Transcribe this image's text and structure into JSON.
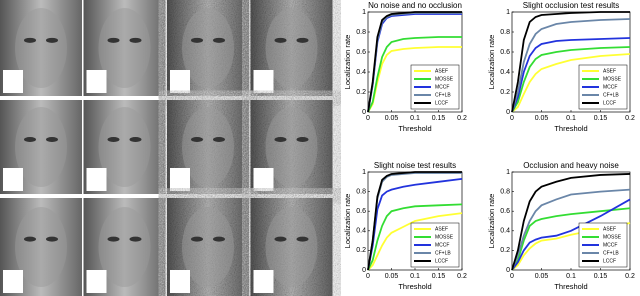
{
  "chart_data": [
    {
      "type": "line",
      "title": "No noise and no occlusion",
      "x_label": "Threshold",
      "y_label": "Localization rate",
      "x": [
        0,
        0.01,
        0.02,
        0.03,
        0.04,
        0.05,
        0.075,
        0.1,
        0.15,
        0.2
      ],
      "xlim": [
        0,
        0.2
      ],
      "xticks": [
        0,
        0.05,
        0.1,
        0.15,
        0.2
      ],
      "ylim": [
        0,
        1
      ],
      "yticks": [
        0,
        0.2,
        0.4,
        0.6,
        0.8,
        1
      ],
      "legend": "lower-right",
      "series": [
        {
          "name": "ASEF",
          "color": "#ffff33",
          "values": [
            0,
            0.08,
            0.3,
            0.48,
            0.57,
            0.61,
            0.63,
            0.64,
            0.65,
            0.65
          ]
        },
        {
          "name": "MOSSE",
          "color": "#33dd33",
          "values": [
            0,
            0.1,
            0.35,
            0.55,
            0.65,
            0.7,
            0.73,
            0.74,
            0.75,
            0.75
          ]
        },
        {
          "name": "MCCF",
          "color": "#2233dd",
          "values": [
            0,
            0.27,
            0.7,
            0.88,
            0.94,
            0.96,
            0.97,
            0.98,
            0.98,
            0.98
          ]
        },
        {
          "name": "CF+LB",
          "color": "#6a86a8",
          "values": [
            0,
            0.28,
            0.72,
            0.9,
            0.95,
            0.97,
            0.98,
            0.99,
            0.99,
            0.99
          ]
        },
        {
          "name": "LCCF",
          "color": "#000000",
          "values": [
            0,
            0.3,
            0.75,
            0.92,
            0.96,
            0.98,
            0.99,
            1,
            1,
            1
          ]
        }
      ]
    },
    {
      "type": "line",
      "title": "Slight occlusion test results",
      "x_label": "Threshold",
      "y_label": "Localization rate",
      "x": [
        0,
        0.01,
        0.02,
        0.03,
        0.04,
        0.05,
        0.075,
        0.1,
        0.15,
        0.2
      ],
      "xlim": [
        0,
        0.2
      ],
      "xticks": [
        0,
        0.05,
        0.1,
        0.15,
        0.2
      ],
      "ylim": [
        0,
        1
      ],
      "yticks": [
        0,
        0.2,
        0.4,
        0.6,
        0.8,
        1
      ],
      "legend": "lower-right",
      "series": [
        {
          "name": "ASEF",
          "color": "#ffff33",
          "values": [
            0,
            0.05,
            0.18,
            0.3,
            0.38,
            0.43,
            0.48,
            0.52,
            0.56,
            0.58
          ]
        },
        {
          "name": "MOSSE",
          "color": "#33dd33",
          "values": [
            0,
            0.1,
            0.3,
            0.45,
            0.53,
            0.57,
            0.6,
            0.62,
            0.64,
            0.65
          ]
        },
        {
          "name": "MCCF",
          "color": "#2233dd",
          "values": [
            0,
            0.15,
            0.4,
            0.56,
            0.64,
            0.68,
            0.71,
            0.72,
            0.73,
            0.74
          ]
        },
        {
          "name": "CF+LB",
          "color": "#6a86a8",
          "values": [
            0,
            0.2,
            0.5,
            0.68,
            0.78,
            0.83,
            0.88,
            0.9,
            0.92,
            0.93
          ]
        },
        {
          "name": "LCCF",
          "color": "#000000",
          "values": [
            0,
            0.3,
            0.72,
            0.9,
            0.95,
            0.97,
            0.98,
            0.99,
            1,
            1
          ]
        }
      ]
    },
    {
      "type": "line",
      "title": "Slight noise test results",
      "x_label": "Threshold",
      "y_label": "Localization rate",
      "x": [
        0,
        0.01,
        0.02,
        0.03,
        0.04,
        0.05,
        0.075,
        0.1,
        0.15,
        0.2
      ],
      "xlim": [
        0,
        0.2
      ],
      "xticks": [
        0,
        0.05,
        0.1,
        0.15,
        0.2
      ],
      "ylim": [
        0,
        1
      ],
      "yticks": [
        0,
        0.2,
        0.4,
        0.6,
        0.8,
        1
      ],
      "legend": "lower-right",
      "series": [
        {
          "name": "ASEF",
          "color": "#ffff33",
          "values": [
            0,
            0.05,
            0.15,
            0.25,
            0.33,
            0.38,
            0.44,
            0.5,
            0.55,
            0.58
          ]
        },
        {
          "name": "MOSSE",
          "color": "#33dd33",
          "values": [
            0,
            0.1,
            0.3,
            0.45,
            0.55,
            0.6,
            0.63,
            0.65,
            0.66,
            0.67
          ]
        },
        {
          "name": "MCCF",
          "color": "#2233dd",
          "values": [
            0,
            0.25,
            0.62,
            0.76,
            0.8,
            0.82,
            0.85,
            0.87,
            0.9,
            0.93
          ]
        },
        {
          "name": "CF+LB",
          "color": "#6a86a8",
          "values": [
            0,
            0.3,
            0.73,
            0.9,
            0.95,
            0.97,
            0.98,
            0.99,
            0.99,
            0.99
          ]
        },
        {
          "name": "LCCF",
          "color": "#000000",
          "values": [
            0,
            0.3,
            0.75,
            0.92,
            0.96,
            0.98,
            0.99,
            1,
            1,
            1
          ]
        }
      ]
    },
    {
      "type": "line",
      "title": "Occlusion and heavy noise",
      "x_label": "Threshold",
      "y_label": "Localization rate",
      "x": [
        0,
        0.01,
        0.02,
        0.03,
        0.04,
        0.05,
        0.075,
        0.1,
        0.15,
        0.2
      ],
      "xlim": [
        0,
        0.2
      ],
      "xticks": [
        0,
        0.05,
        0.1,
        0.15,
        0.2
      ],
      "ylim": [
        0,
        1
      ],
      "yticks": [
        0,
        0.2,
        0.4,
        0.6,
        0.8,
        1
      ],
      "legend": "lower-right",
      "series": [
        {
          "name": "ASEF",
          "color": "#ffff33",
          "values": [
            0,
            0.05,
            0.15,
            0.22,
            0.27,
            0.3,
            0.32,
            0.36,
            0.42,
            0.48
          ]
        },
        {
          "name": "MOSSE",
          "color": "#33dd33",
          "values": [
            0,
            0.1,
            0.3,
            0.45,
            0.5,
            0.52,
            0.55,
            0.57,
            0.6,
            0.63
          ]
        },
        {
          "name": "MCCF",
          "color": "#2233dd",
          "values": [
            0,
            0.08,
            0.2,
            0.28,
            0.31,
            0.33,
            0.35,
            0.4,
            0.55,
            0.72
          ]
        },
        {
          "name": "CF+LB",
          "color": "#6a86a8",
          "values": [
            0,
            0.15,
            0.35,
            0.5,
            0.6,
            0.66,
            0.72,
            0.77,
            0.8,
            0.82
          ]
        },
        {
          "name": "LCCF",
          "color": "#000000",
          "values": [
            0,
            0.2,
            0.5,
            0.7,
            0.8,
            0.85,
            0.9,
            0.94,
            0.97,
            0.98
          ]
        }
      ]
    }
  ]
}
